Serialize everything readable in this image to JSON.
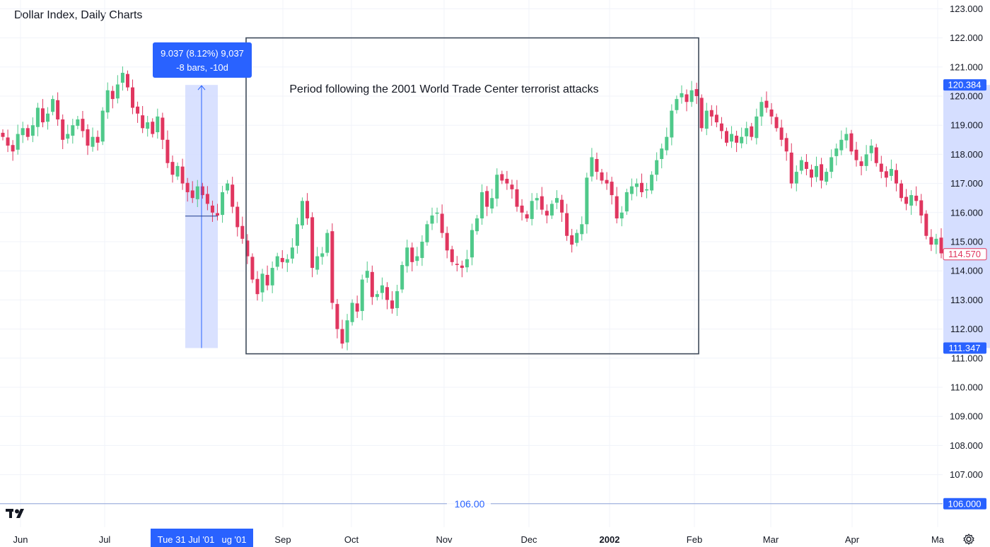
{
  "title": "Dollar Index, Daily Charts",
  "colors": {
    "up": "#4fc98a",
    "down": "#e0365f",
    "grid": "#f0f3fa",
    "axis_text": "#131722",
    "accent": "#2962ff",
    "measure_fill": "#d5deff",
    "box_stroke": "#3e4a5a"
  },
  "icons": [
    "tradingview-logo-icon",
    "settings-gear-icon"
  ],
  "chart_data": {
    "type": "candlestick",
    "ylim": [
      105.4,
      123.3
    ],
    "y_ticks": [
      "123.000",
      "122.000",
      "121.000",
      "120.000",
      "119.000",
      "118.000",
      "117.000",
      "116.000",
      "115.000",
      "114.000",
      "113.000",
      "112.000",
      "111.000",
      "110.000",
      "109.000",
      "108.000",
      "107.000",
      "106.000"
    ],
    "x_ticks": [
      "Jun",
      "Jul",
      "Sep",
      "Oct",
      "Nov",
      "Dec",
      "2002",
      "Feb",
      "Mar",
      "Apr",
      "Ma"
    ],
    "price_labels": [
      {
        "text": "120.384",
        "value": 120.384,
        "style": "accent"
      },
      {
        "text": "114.570",
        "value": 114.57,
        "style": "last"
      },
      {
        "text": "111.347",
        "value": 111.347,
        "style": "accent"
      },
      {
        "text": "106.000",
        "value": 106.0,
        "style": "accent"
      }
    ],
    "time_label": {
      "text": "Tue 31 Jul '01",
      "partial": "ug '01"
    },
    "horizontal_line": {
      "value": 106.0,
      "label": "106.00"
    },
    "measure": {
      "line1": "9.037 (8.12%) 9,037",
      "line2": "-8 bars, -10d",
      "from": 111.347,
      "to": 120.384
    },
    "annotation": {
      "text": "Period following the 2001 World Trade Center terrorist attacks",
      "top": 122.0,
      "bottom": 111.15,
      "from": "Aug '01",
      "to": "Feb '02"
    },
    "closes": [
      118.6,
      118.3,
      118.1,
      118.7,
      118.9,
      118.6,
      119.0,
      119.6,
      119.1,
      119.4,
      119.9,
      119.2,
      118.5,
      118.7,
      119.0,
      119.2,
      118.8,
      118.3,
      118.6,
      118.4,
      119.5,
      120.2,
      119.9,
      120.4,
      120.8,
      120.3,
      119.6,
      119.4,
      118.9,
      119.1,
      118.7,
      119.3,
      118.5,
      117.7,
      117.3,
      117.6,
      117.0,
      116.7,
      116.5,
      116.9,
      116.6,
      116.3,
      116.0,
      115.9,
      116.7,
      117.0,
      116.2,
      115.5,
      115.1,
      114.5,
      113.7,
      113.2,
      113.9,
      113.5,
      114.1,
      114.5,
      114.3,
      114.4,
      114.8,
      115.6,
      116.4,
      115.8,
      114.1,
      114.5,
      114.6,
      115.3,
      112.9,
      112.0,
      111.5,
      112.3,
      112.9,
      112.6,
      113.7,
      114.0,
      113.1,
      113.2,
      113.5,
      113.0,
      112.7,
      113.3,
      114.2,
      114.8,
      114.3,
      114.5,
      115.0,
      115.6,
      115.9,
      116.0,
      115.3,
      114.7,
      114.3,
      114.2,
      114.1,
      114.4,
      115.4,
      115.8,
      116.7,
      116.2,
      116.5,
      117.3,
      117.1,
      117.0,
      116.8,
      116.2,
      116.0,
      115.8,
      116.4,
      116.5,
      116.1,
      115.9,
      116.3,
      116.5,
      116.0,
      115.2,
      114.9,
      115.3,
      115.6,
      117.2,
      117.9,
      117.4,
      117.1,
      117.0,
      116.6,
      115.8,
      116.0,
      116.7,
      116.9,
      117.0,
      116.7,
      116.8,
      117.3,
      117.8,
      118.2,
      118.6,
      119.5,
      119.9,
      120.1,
      119.8,
      120.2,
      120.0,
      118.9,
      119.5,
      119.3,
      119.1,
      118.8,
      118.4,
      118.7,
      118.4,
      118.6,
      118.9,
      118.6,
      119.3,
      119.8,
      119.6,
      119.3,
      118.9,
      118.5,
      118.1,
      117.0,
      117.4,
      117.8,
      117.5,
      117.2,
      117.6,
      117.1,
      117.4,
      117.9,
      118.2,
      118.5,
      118.7,
      118.1,
      117.8,
      117.6,
      118.0,
      118.3,
      117.7,
      117.4,
      117.2,
      117.5,
      117.0,
      116.5,
      116.3,
      116.6,
      116.4,
      115.9,
      115.2,
      114.9,
      115.1,
      114.6
    ]
  }
}
